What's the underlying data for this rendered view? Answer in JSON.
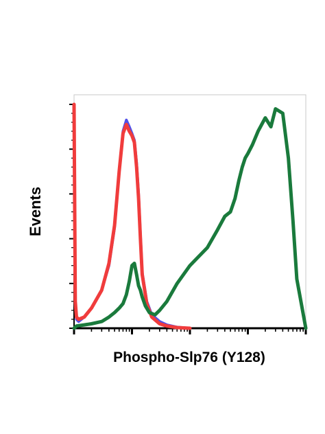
{
  "chart_data": {
    "type": "line",
    "title": "",
    "xlabel": "Phospho-Slp76 (Y128)",
    "ylabel": "Events",
    "x_scale": "log",
    "xlim": [
      1,
      10000
    ],
    "ylim": [
      0,
      100
    ],
    "grid": false,
    "legend": "none",
    "series": [
      {
        "color": "#5050e8",
        "x": [
          1,
          1.05,
          1.1,
          1.2,
          1.5,
          2,
          3,
          4,
          5,
          6,
          7,
          8,
          9,
          10,
          11,
          12,
          13,
          14,
          15,
          18,
          22,
          30,
          40,
          60,
          100
        ],
        "y": [
          100,
          12,
          4,
          3,
          5,
          9,
          17,
          28,
          45,
          70,
          88,
          93,
          90,
          87,
          84,
          74,
          60,
          42,
          25,
          12,
          6,
          3,
          1.5,
          0.5,
          0
        ]
      },
      {
        "color": "#f03c3c",
        "x": [
          1,
          1.05,
          1.1,
          1.2,
          1.5,
          2,
          3,
          4,
          5,
          6,
          7,
          8,
          9,
          10,
          11,
          12,
          13,
          14,
          15,
          18,
          22,
          30,
          40,
          60,
          100
        ],
        "y": [
          100,
          12,
          5,
          4,
          5,
          9,
          17,
          29,
          46,
          70,
          87,
          91,
          88,
          86,
          83,
          72,
          58,
          40,
          24,
          11,
          5,
          2,
          1,
          0.3,
          0
        ]
      },
      {
        "color": "#1a7a3c",
        "x": [
          1,
          1.1,
          1.5,
          2,
          3,
          4,
          5,
          6,
          7,
          8,
          9,
          10,
          11,
          12,
          13,
          14,
          15,
          17,
          20,
          25,
          30,
          40,
          60,
          100,
          200,
          300,
          400,
          500,
          600,
          700,
          800,
          900,
          1000,
          1200,
          1500,
          2000,
          2500,
          3000,
          4000,
          5000,
          6000,
          7000,
          10000
        ],
        "y": [
          0,
          1,
          1.5,
          2,
          3,
          5,
          7,
          9,
          11,
          15,
          21,
          28,
          29,
          24,
          19,
          17,
          14,
          10,
          7,
          6,
          8,
          12,
          20,
          28,
          36,
          44,
          50,
          52,
          58,
          66,
          72,
          76,
          78,
          82,
          88,
          94,
          90,
          98,
          96,
          76,
          48,
          22,
          0
        ]
      }
    ]
  }
}
